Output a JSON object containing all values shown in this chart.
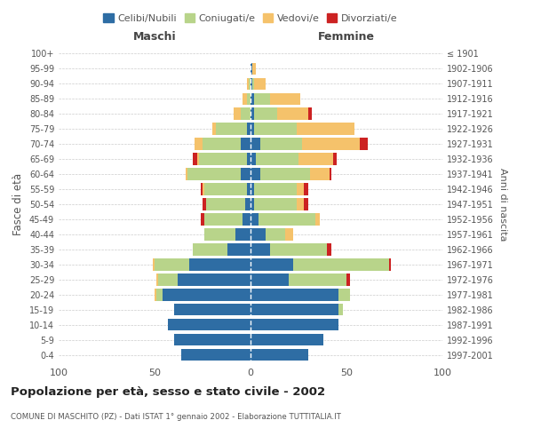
{
  "age_groups": [
    "0-4",
    "5-9",
    "10-14",
    "15-19",
    "20-24",
    "25-29",
    "30-34",
    "35-39",
    "40-44",
    "45-49",
    "50-54",
    "55-59",
    "60-64",
    "65-69",
    "70-74",
    "75-79",
    "80-84",
    "85-89",
    "90-94",
    "95-99",
    "100+"
  ],
  "birth_years": [
    "1997-2001",
    "1992-1996",
    "1987-1991",
    "1982-1986",
    "1977-1981",
    "1972-1976",
    "1967-1971",
    "1962-1966",
    "1957-1961",
    "1952-1956",
    "1947-1951",
    "1942-1946",
    "1937-1941",
    "1932-1936",
    "1927-1931",
    "1922-1926",
    "1917-1921",
    "1912-1916",
    "1907-1911",
    "1902-1906",
    "≤ 1901"
  ],
  "maschi": {
    "celibe": [
      36,
      40,
      43,
      40,
      46,
      38,
      32,
      12,
      8,
      4,
      3,
      2,
      5,
      2,
      5,
      2,
      0,
      0,
      0,
      0,
      0
    ],
    "coniugato": [
      0,
      0,
      0,
      0,
      3,
      10,
      18,
      18,
      16,
      20,
      20,
      22,
      28,
      25,
      20,
      16,
      5,
      2,
      1,
      0,
      0
    ],
    "vedovo": [
      0,
      0,
      0,
      0,
      1,
      1,
      1,
      0,
      0,
      0,
      0,
      1,
      1,
      1,
      4,
      2,
      4,
      2,
      1,
      0,
      0
    ],
    "divorziato": [
      0,
      0,
      0,
      0,
      0,
      0,
      0,
      0,
      0,
      2,
      2,
      1,
      0,
      2,
      0,
      0,
      0,
      0,
      0,
      0,
      0
    ]
  },
  "femmine": {
    "nubile": [
      30,
      38,
      46,
      46,
      46,
      20,
      22,
      10,
      8,
      4,
      2,
      2,
      5,
      3,
      5,
      2,
      2,
      2,
      1,
      1,
      0
    ],
    "coniugata": [
      0,
      0,
      0,
      2,
      6,
      30,
      50,
      30,
      10,
      30,
      22,
      22,
      26,
      22,
      22,
      22,
      12,
      8,
      1,
      0,
      0
    ],
    "vedova": [
      0,
      0,
      0,
      0,
      0,
      0,
      0,
      0,
      4,
      2,
      4,
      4,
      10,
      18,
      30,
      30,
      16,
      16,
      6,
      2,
      0
    ],
    "divorziata": [
      0,
      0,
      0,
      0,
      0,
      2,
      1,
      2,
      0,
      0,
      2,
      2,
      1,
      2,
      4,
      0,
      2,
      0,
      0,
      0,
      0
    ]
  },
  "colors": {
    "celibe": "#2e6da4",
    "coniugato": "#b8d48a",
    "vedovo": "#f5c26b",
    "divorziato": "#cc2222"
  },
  "legend_labels": [
    "Celibi/Nubili",
    "Coniugati/e",
    "Vedovi/e",
    "Divorziati/e"
  ],
  "title": "Popolazione per età, sesso e stato civile - 2002",
  "subtitle": "COMUNE DI MASCHITO (PZ) - Dati ISTAT 1° gennaio 2002 - Elaborazione TUTTITALIA.IT",
  "xlabel_left": "Maschi",
  "xlabel_right": "Femmine",
  "ylabel_left": "Fasce di età",
  "ylabel_right": "Anni di nascita",
  "xlim": 100,
  "background_color": "#ffffff"
}
